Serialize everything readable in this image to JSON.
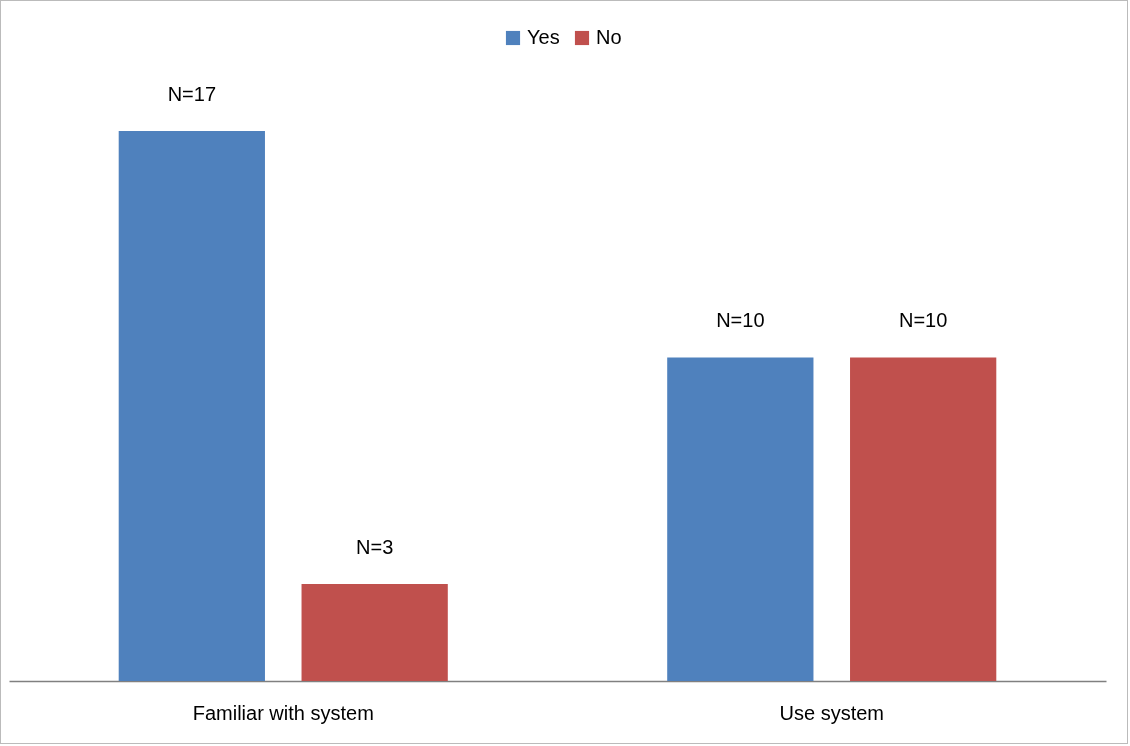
{
  "chart_data": {
    "type": "bar",
    "categories": [
      "Familiar with system",
      "Use system"
    ],
    "series": [
      {
        "name": "Yes",
        "color": "#4f81bd",
        "values": [
          17,
          10
        ],
        "value_labels": [
          "N=17",
          "N=10"
        ]
      },
      {
        "name": "No",
        "color": "#c0504d",
        "values": [
          3,
          10
        ],
        "value_labels": [
          "N=3",
          "N=10"
        ]
      }
    ],
    "legend": "top",
    "grid": false
  }
}
